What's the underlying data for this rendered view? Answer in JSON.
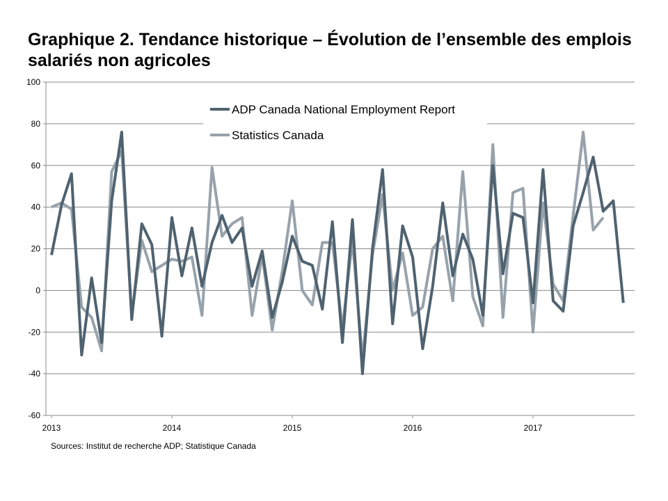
{
  "title": "Graphique 2. Tendance historique – Évolution de l’ensemble des emplois salariés non agricoles",
  "source": "Sources: Institut de recherche  ADP; Statistique Canada",
  "chart_data": {
    "type": "line",
    "title": "Graphique 2. Tendance historique – Évolution de l’ensemble des emplois salariés non agricoles",
    "x_tick_labels": [
      "2013",
      "2014",
      "2015",
      "2016",
      "2017"
    ],
    "ylim": [
      -60,
      100
    ],
    "y_ticks": [
      -60,
      -40,
      -20,
      0,
      20,
      40,
      60,
      80,
      100
    ],
    "y_tick_labels": [
      "-60",
      "-40",
      "-20",
      "0",
      "20",
      "40",
      "60",
      "80",
      "100"
    ],
    "grid": true,
    "legend_position": "top-center",
    "series": [
      {
        "name": "ADP Canada National Employment Report",
        "color": "#4f6270",
        "start_month": "2013-01",
        "values": [
          17,
          41,
          56,
          -31,
          6,
          -25,
          43,
          76,
          -14,
          32,
          22,
          -22,
          35,
          7,
          30,
          2,
          23,
          36,
          23,
          30,
          2,
          19,
          -13,
          4,
          26,
          14,
          12,
          -9,
          33,
          -25,
          34,
          -40,
          20,
          58,
          -16,
          31,
          16,
          -28,
          2,
          42,
          7,
          27,
          15,
          -12,
          60,
          8,
          37,
          35,
          -6,
          58,
          -5,
          -10,
          31,
          47,
          64,
          38,
          43,
          -6
        ]
      },
      {
        "name": "Statistics Canada",
        "color": "#97a2ab",
        "start_month": "2013-01",
        "values": [
          40,
          42,
          39,
          -8,
          -13,
          -29,
          57,
          67,
          -12,
          24,
          9,
          12,
          15,
          14,
          16,
          -12,
          59,
          26,
          32,
          35,
          -12,
          17,
          -19,
          9,
          43,
          0,
          -7,
          23,
          23,
          -18,
          24,
          -33,
          17,
          46,
          0,
          18,
          -12,
          -8,
          20,
          26,
          -5,
          57,
          -3,
          -17,
          70,
          -13,
          47,
          49,
          -20,
          42,
          3,
          -5,
          36,
          76,
          29,
          35
        ]
      }
    ]
  }
}
